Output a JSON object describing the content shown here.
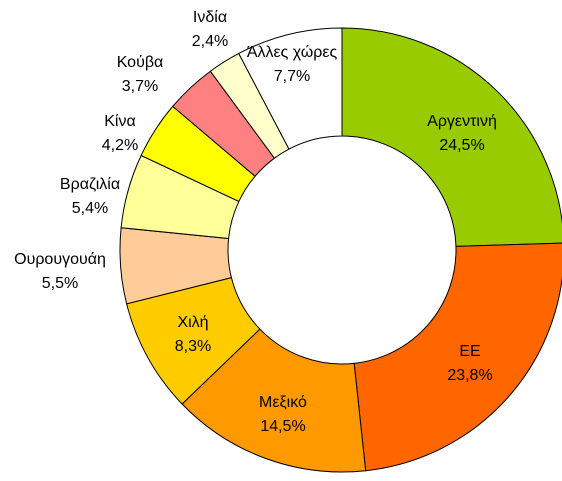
{
  "chart_data": {
    "type": "donut",
    "categories": [
      "Αργεντινή",
      "ΕΕ",
      "Μεξικό",
      "Χιλή",
      "Ουρουγουάη",
      "Βραζιλία",
      "Κίνα",
      "Κούβα",
      "Ινδία",
      "Άλλες χώρες"
    ],
    "values": [
      24.5,
      23.8,
      14.5,
      8.3,
      5.5,
      5.4,
      4.2,
      3.7,
      2.4,
      7.7
    ],
    "value_labels": [
      "24,5%",
      "23,8%",
      "14,5%",
      "8,3%",
      "5,5%",
      "5,4%",
      "4,2%",
      "3,7%",
      "2,4%",
      "7,7%"
    ],
    "colors": [
      "#99cc00",
      "#ff6600",
      "#ff9900",
      "#ffcc00",
      "#ffcc99",
      "#ffff99",
      "#ffff00",
      "#ff8080",
      "#ffffcc",
      "#ffffff"
    ]
  }
}
